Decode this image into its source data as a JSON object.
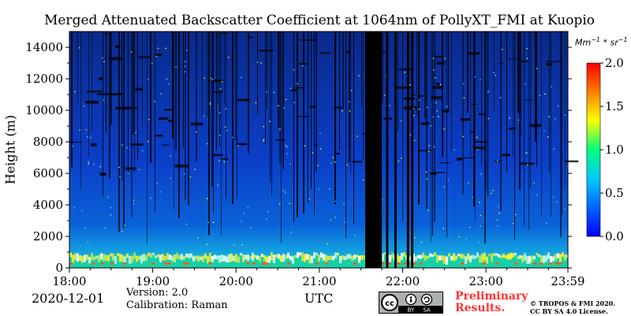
{
  "chart_data": {
    "type": "heatmap",
    "title": "Merged Attenuated Backscatter Coefficient at 1064nm of PollyXT_FMI at Kuopio",
    "xlabel": "UTC",
    "ylabel": "Height (m)",
    "x_ticks": [
      "18:00",
      "19:00",
      "20:00",
      "21:00",
      "22:00",
      "23:00",
      "23:59"
    ],
    "x_range_hours": [
      18.0,
      23.983
    ],
    "y_ticks": [
      0,
      2000,
      4000,
      6000,
      8000,
      10000,
      12000,
      14000
    ],
    "ylim": [
      0,
      15000
    ],
    "colorbar": {
      "unit_prefix": "Mm",
      "unit_exp1": "−1",
      "unit_mid": " * sr",
      "unit_exp2": "−1",
      "ticks": [
        "0.0",
        "0.5",
        "1.0",
        "1.5",
        "2.0"
      ],
      "range": [
        0.0,
        2.0
      ],
      "colormap": [
        "#0000ff",
        "#0066ff",
        "#00c8ff",
        "#00ff80",
        "#ffff00",
        "#ff8000",
        "#ff0000"
      ]
    },
    "missing_data_hours": [
      [
        21.55,
        21.75
      ]
    ],
    "features": {
      "boundary_layer_top_m": 800,
      "sparse_signal_above_m": 1500
    }
  },
  "footer": {
    "date": "2020-12-01",
    "version": "Version: 2.0",
    "calibration": "Calibration: Raman",
    "license_badge": {
      "cc": "cc",
      "by": "BY",
      "sa": "SA"
    },
    "preliminary_line1": "Preliminary",
    "preliminary_line2": "Results.",
    "copyright_line1": "© TROPOS & FMI 2020.",
    "copyright_line2": "CC BY SA 4.0 License."
  }
}
